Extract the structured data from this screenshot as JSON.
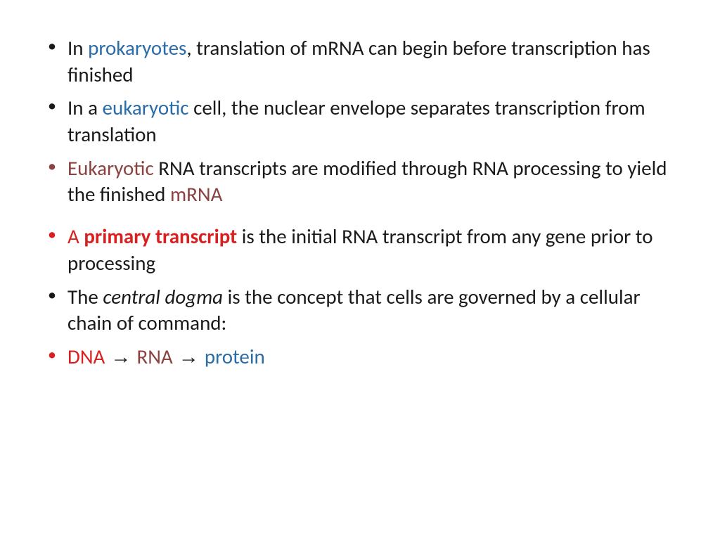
{
  "slide": {
    "background": "#ffffff",
    "text_color": "#1a1a1a",
    "font_family": "Calibri",
    "base_fontsize": 29,
    "colors": {
      "blue": "#2a6ca8",
      "brown": "#8b4240",
      "red": "#d92020",
      "black": "#1a1a1a"
    },
    "bullets": [
      {
        "bullet_color": "black",
        "runs": [
          {
            "text": "In ",
            "style": ""
          },
          {
            "text": "prokaryotes",
            "style": "blue"
          },
          {
            "text": ", translation of mRNA can begin before transcription has finished",
            "style": ""
          }
        ]
      },
      {
        "bullet_color": "black",
        "runs": [
          {
            "text": "In a ",
            "style": ""
          },
          {
            "text": "eukaryotic",
            "style": "blue"
          },
          {
            "text": " cell, the nuclear envelope separates transcription from translation",
            "style": ""
          }
        ]
      },
      {
        "bullet_color": "brown",
        "runs": [
          {
            "text": "Eukaryotic",
            "style": "brown"
          },
          {
            "text": " RNA transcripts are modified through RNA processing to yield the finished ",
            "style": ""
          },
          {
            "text": "mRNA",
            "style": "brown"
          }
        ]
      },
      {
        "bullet_color": "red",
        "spacer_before": true,
        "runs": [
          {
            "text": "A ",
            "style": "red"
          },
          {
            "text": "primary transcript",
            "style": "red bold"
          },
          {
            "text": " is the initial RNA transcript from any gene prior to processing",
            "style": ""
          }
        ]
      },
      {
        "bullet_color": "black",
        "runs": [
          {
            "text": "The ",
            "style": ""
          },
          {
            "text": "central dogma",
            "style": "italic"
          },
          {
            "text": " is the concept that cells are governed by a cellular chain of command:",
            "style": ""
          }
        ]
      },
      {
        "bullet_color": "red",
        "runs": [
          {
            "text": "DNA",
            "style": "red"
          },
          {
            "text": " → ",
            "style": "arrow"
          },
          {
            "text": "RNA",
            "style": "brown"
          },
          {
            "text": " → ",
            "style": "arrow"
          },
          {
            "text": "protein",
            "style": "blue"
          }
        ]
      }
    ]
  }
}
